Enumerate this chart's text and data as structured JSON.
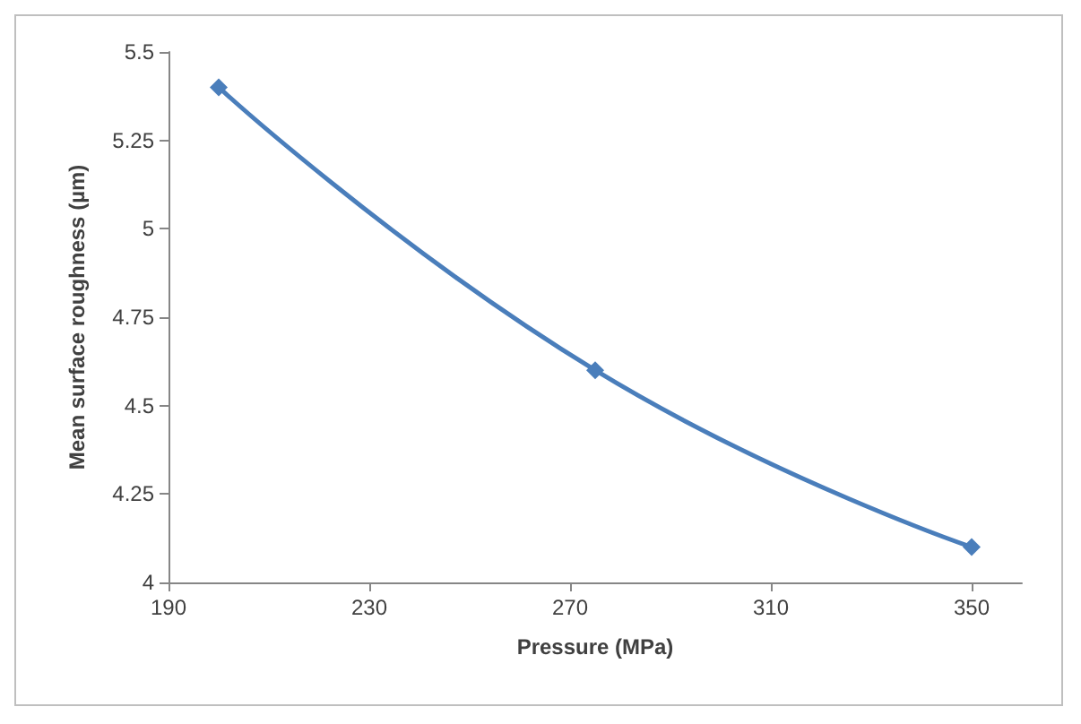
{
  "chart_data": {
    "type": "line",
    "xlabel": "Pressure (MPa)",
    "ylabel": "Mean surface roughness (µm)",
    "x": [
      200,
      275,
      350
    ],
    "series": [
      {
        "color": "#4a7ebb",
        "values": [
          5.4,
          4.6,
          4.1
        ]
      }
    ],
    "xlim": [
      190,
      360
    ],
    "xticks": [
      190,
      230,
      270,
      310,
      350
    ],
    "ylim": [
      4,
      5.5
    ],
    "yticks": [
      4,
      4.25,
      4.5,
      4.75,
      5,
      5.25,
      5.5
    ],
    "grid": false,
    "marker": "diamond",
    "line_style": "solid"
  }
}
